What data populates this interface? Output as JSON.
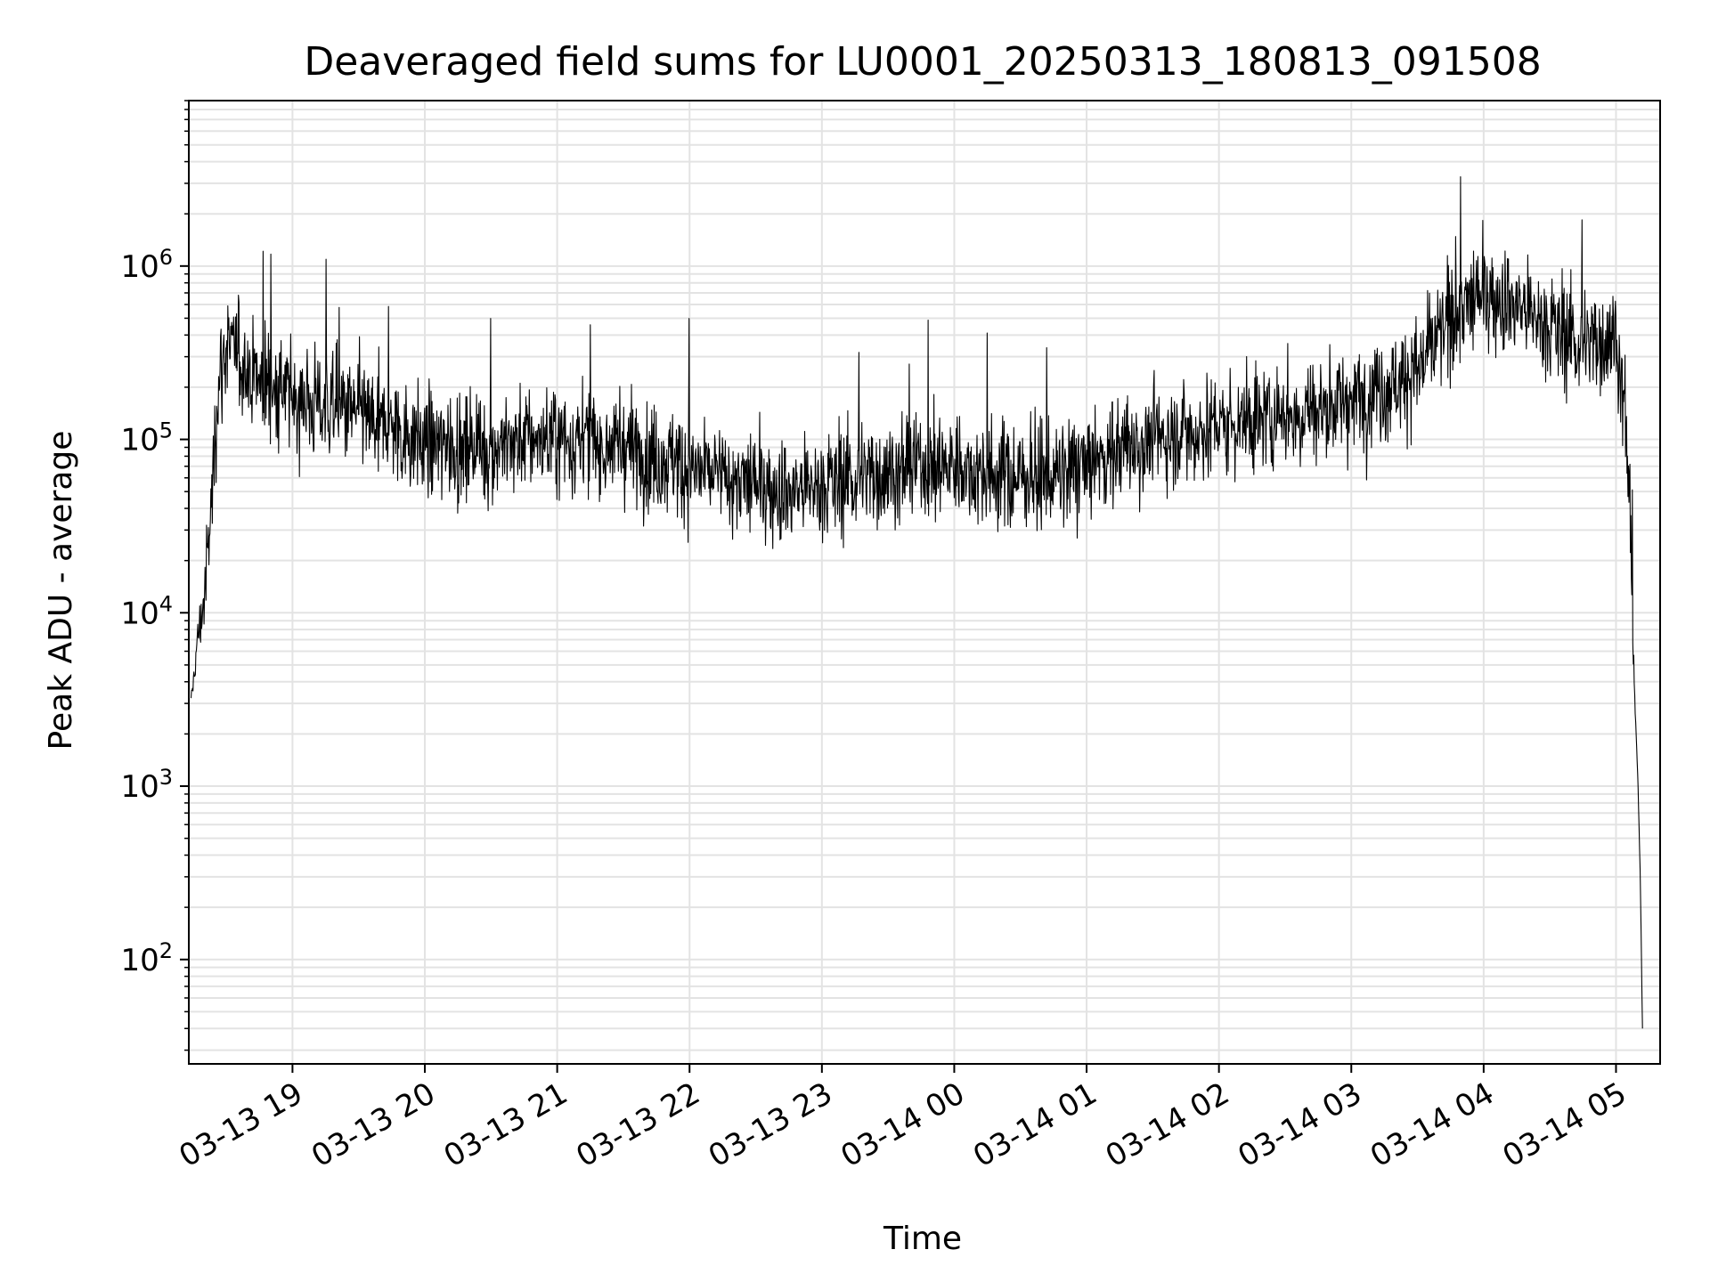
{
  "chart_data": {
    "type": "line",
    "title": "Deaveraged field sums for LU0001_20250313_180813_091508",
    "xlabel": "Time",
    "ylabel": "Peak ADU - average",
    "yscale": "log",
    "grid": true,
    "ylim": [
      25,
      9000000
    ],
    "xlim": [
      "2025-03-13 18:13",
      "2025-03-14 05:20"
    ],
    "y_ticks": [
      {
        "value": 100,
        "base": "10",
        "exp": "2"
      },
      {
        "value": 1000,
        "base": "10",
        "exp": "3"
      },
      {
        "value": 10000,
        "base": "10",
        "exp": "4"
      },
      {
        "value": 100000,
        "base": "10",
        "exp": "5"
      },
      {
        "value": 1000000,
        "base": "10",
        "exp": "6"
      }
    ],
    "x_ticks": [
      {
        "value": "2025-03-13 19:00",
        "label": "03-13 19"
      },
      {
        "value": "2025-03-13 20:00",
        "label": "03-13 20"
      },
      {
        "value": "2025-03-13 21:00",
        "label": "03-13 21"
      },
      {
        "value": "2025-03-13 22:00",
        "label": "03-13 22"
      },
      {
        "value": "2025-03-13 23:00",
        "label": "03-13 23"
      },
      {
        "value": "2025-03-14 00:00",
        "label": "03-14 00"
      },
      {
        "value": "2025-03-14 01:00",
        "label": "03-14 01"
      },
      {
        "value": "2025-03-14 02:00",
        "label": "03-14 02"
      },
      {
        "value": "2025-03-14 03:00",
        "label": "03-14 03"
      },
      {
        "value": "2025-03-14 04:00",
        "label": "03-14 04"
      },
      {
        "value": "2025-03-14 05:00",
        "label": "03-14 05"
      }
    ],
    "series": [
      {
        "color": "#000000",
        "x": [
          "2025-03-13 18:14",
          "2025-03-13 18:17",
          "2025-03-13 18:20",
          "2025-03-13 18:22",
          "2025-03-13 18:24",
          "2025-03-13 18:26",
          "2025-03-13 18:30",
          "2025-03-13 18:35",
          "2025-03-13 18:40",
          "2025-03-13 18:45",
          "2025-03-13 18:50",
          "2025-03-13 18:55",
          "2025-03-13 19:00",
          "2025-03-13 19:10",
          "2025-03-13 19:20",
          "2025-03-13 19:30",
          "2025-03-13 19:40",
          "2025-03-13 19:50",
          "2025-03-13 20:00",
          "2025-03-13 20:15",
          "2025-03-13 20:30",
          "2025-03-13 20:45",
          "2025-03-13 21:00",
          "2025-03-13 21:15",
          "2025-03-13 21:30",
          "2025-03-13 21:45",
          "2025-03-13 22:00",
          "2025-03-13 22:15",
          "2025-03-13 22:30",
          "2025-03-13 22:45",
          "2025-03-13 23:00",
          "2025-03-13 23:15",
          "2025-03-13 23:30",
          "2025-03-13 23:45",
          "2025-03-14 00:00",
          "2025-03-14 00:15",
          "2025-03-14 00:30",
          "2025-03-14 00:45",
          "2025-03-14 01:00",
          "2025-03-14 01:15",
          "2025-03-14 01:30",
          "2025-03-14 01:45",
          "2025-03-14 02:00",
          "2025-03-14 02:15",
          "2025-03-14 02:30",
          "2025-03-14 02:45",
          "2025-03-14 03:00",
          "2025-03-14 03:15",
          "2025-03-14 03:30",
          "2025-03-14 03:45",
          "2025-03-14 04:00",
          "2025-03-14 04:15",
          "2025-03-14 04:30",
          "2025-03-14 04:45",
          "2025-03-14 05:00",
          "2025-03-14 05:04",
          "2025-03-14 05:06",
          "2025-03-14 05:08",
          "2025-03-14 05:10",
          "2025-03-14 05:11",
          "2025-03-14 05:12"
        ],
        "y": [
          3000,
          7000,
          12000,
          25000,
          60000,
          200000,
          350000,
          300000,
          250000,
          220000,
          200000,
          190000,
          180000,
          160000,
          150000,
          140000,
          120000,
          110000,
          95000,
          90000,
          90000,
          100000,
          100000,
          95000,
          90000,
          80000,
          70000,
          60000,
          55000,
          50000,
          55000,
          60000,
          65000,
          70000,
          70000,
          65000,
          60000,
          60000,
          70000,
          90000,
          100000,
          110000,
          120000,
          130000,
          140000,
          150000,
          170000,
          200000,
          250000,
          500000,
          700000,
          600000,
          450000,
          350000,
          400000,
          150000,
          50000,
          5000,
          1000,
          300,
          40
        ]
      }
    ]
  }
}
